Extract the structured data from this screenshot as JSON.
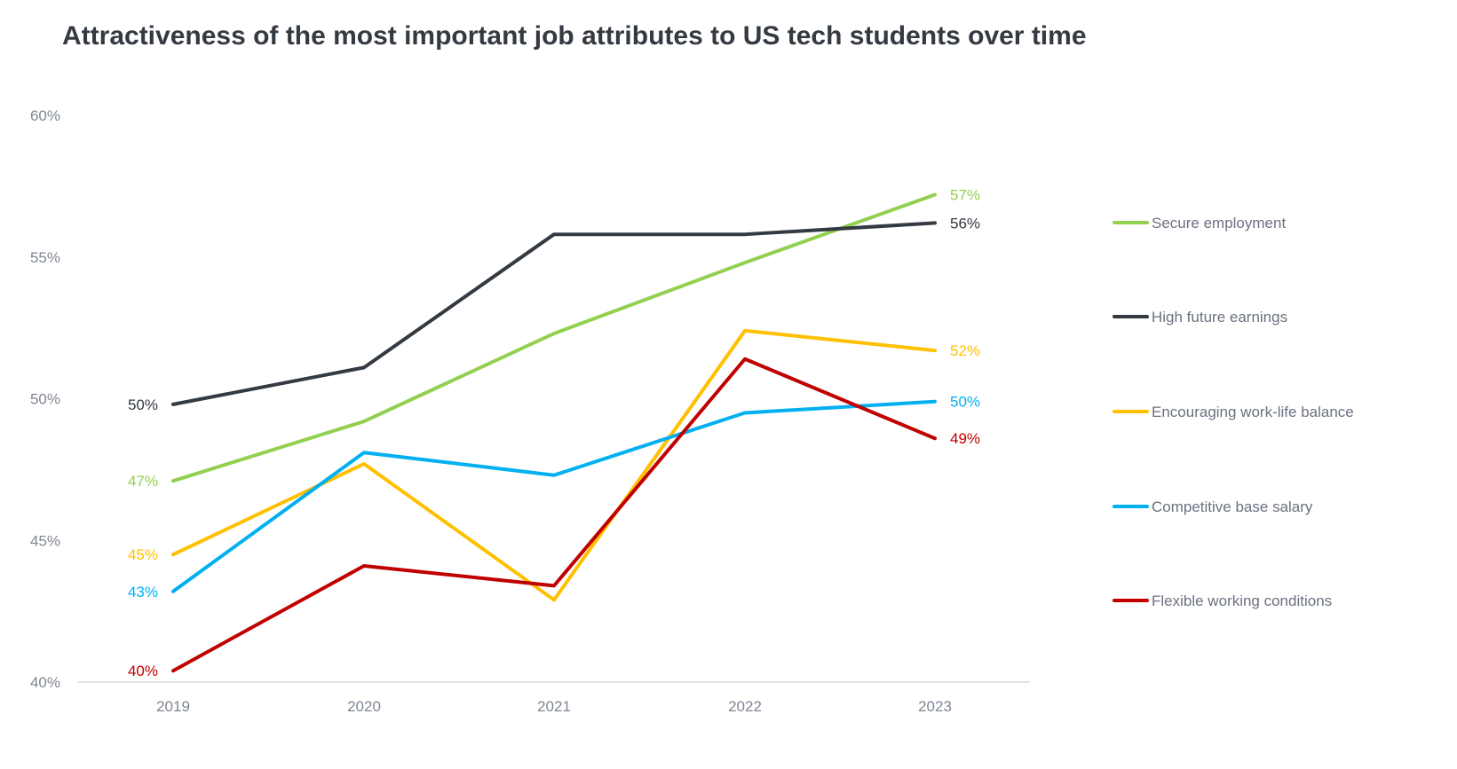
{
  "chart_data": {
    "type": "line",
    "title": "Attractiveness of the most important job attributes to US tech students over time",
    "categories": [
      "2019",
      "2020",
      "2021",
      "2022",
      "2023"
    ],
    "ylim": [
      40,
      60
    ],
    "yticks": [
      40,
      45,
      50,
      55,
      60
    ],
    "ytick_labels": [
      "40%",
      "45%",
      "50%",
      "55%",
      "60%"
    ],
    "grid": false,
    "legend_placement": "right",
    "series": [
      {
        "name": "Secure employment",
        "color": "#92d050",
        "values": [
          47.1,
          49.2,
          52.3,
          54.8,
          57.2
        ],
        "start_label": "47%",
        "end_label": "57%"
      },
      {
        "name": "High future earnings",
        "color": "#343a42",
        "values": [
          49.8,
          51.1,
          55.8,
          55.8,
          56.2
        ],
        "start_label": "50%",
        "end_label": "56%"
      },
      {
        "name": "Encouraging work-life balance",
        "color": "#ffc000",
        "values": [
          44.5,
          47.7,
          42.9,
          52.4,
          51.7
        ],
        "start_label": "45%",
        "end_label": "52%"
      },
      {
        "name": "Competitive base salary",
        "color": "#00b0f0",
        "values": [
          43.2,
          48.1,
          47.3,
          49.5,
          49.9
        ],
        "start_label": "43%",
        "end_label": "50%"
      },
      {
        "name": "Flexible working conditions",
        "color": "#c00000",
        "values": [
          40.4,
          44.1,
          43.4,
          51.4,
          48.6
        ],
        "start_label": "40%",
        "end_label": "49%"
      }
    ]
  }
}
